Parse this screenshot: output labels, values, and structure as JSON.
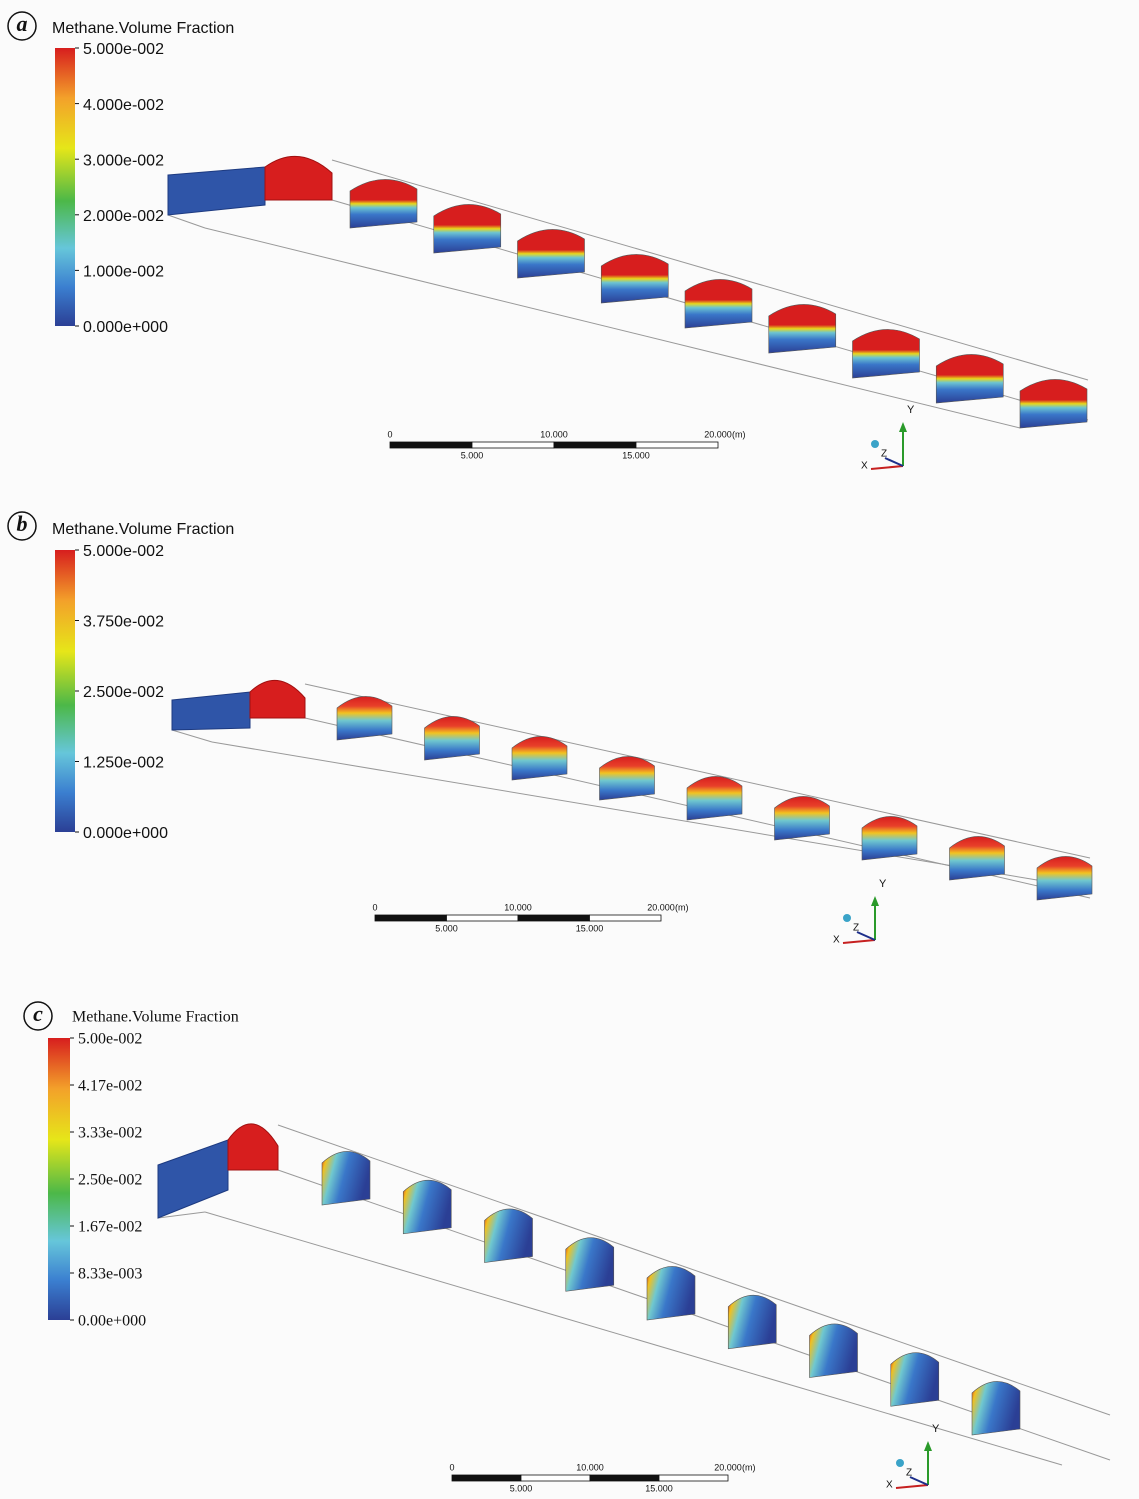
{
  "panels": [
    {
      "label": "a",
      "legend": {
        "title": "Methane.Volume Fraction",
        "ticks": [
          "5.000e-002",
          "4.000e-002",
          "3.000e-002",
          "2.000e-002",
          "1.000e-002",
          "0.000e+000"
        ]
      },
      "scale": {
        "top": [
          "0",
          "10.000",
          "20.000"
        ],
        "unit": "(m)",
        "bottom": [
          "5.000",
          "15.000"
        ]
      },
      "axes": [
        "Y",
        "Z",
        "X"
      ]
    },
    {
      "label": "b",
      "legend": {
        "title": "Methane.Volume Fraction",
        "ticks": [
          "5.000e-002",
          "3.750e-002",
          "2.500e-002",
          "1.250e-002",
          "0.000e+000"
        ]
      },
      "scale": {
        "top": [
          "0",
          "10.000",
          "20.000"
        ],
        "unit": "(m)",
        "bottom": [
          "5.000",
          "15.000"
        ]
      },
      "axes": [
        "Y",
        "Z",
        "X"
      ]
    },
    {
      "label": "c",
      "legend": {
        "title": "Methane.Volume Fraction",
        "ticks": [
          "5.00e-002",
          "4.17e-002",
          "3.33e-002",
          "2.50e-002",
          "1.67e-002",
          "8.33e-003",
          "0.00e+000"
        ]
      },
      "scale": {
        "top": [
          "0",
          "10.000",
          "20.000"
        ],
        "unit": "(m)",
        "bottom": [
          "5.000",
          "15.000"
        ]
      },
      "axes": [
        "Y",
        "Z",
        "X"
      ]
    }
  ]
}
